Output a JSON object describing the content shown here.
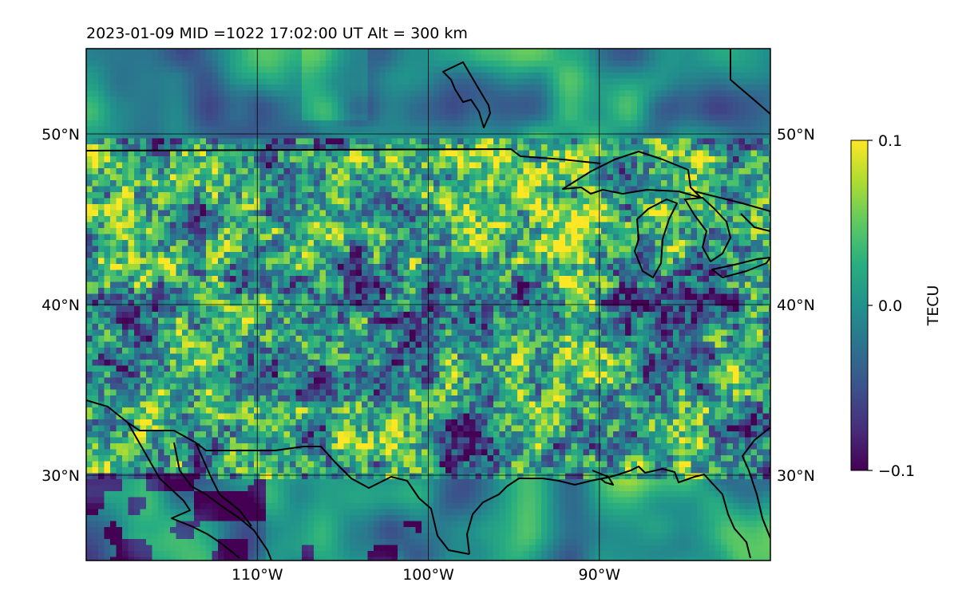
{
  "chart_data": {
    "type": "heatmap",
    "title": "2023-01-09  MID =1022    17:02:00  UT  Alt = 300 km",
    "x_ticks": [
      "110°W",
      "100°W",
      "90°W"
    ],
    "x_tick_values": [
      -110,
      -100,
      -90
    ],
    "y_ticks": [
      "50°N",
      "40°N",
      "30°N"
    ],
    "y_tick_values": [
      50,
      40,
      30
    ],
    "xlim": [
      -120,
      -80
    ],
    "ylim": [
      25,
      55
    ],
    "grid": true,
    "colormap": "viridis",
    "colorbar": {
      "label": "TECU",
      "range": [
        -0.1,
        0.1
      ],
      "ticks": [
        "0.1",
        "0.0",
        "−0.1"
      ],
      "tick_values": [
        0.1,
        0.0,
        -0.1
      ]
    },
    "coastlines": true
  }
}
